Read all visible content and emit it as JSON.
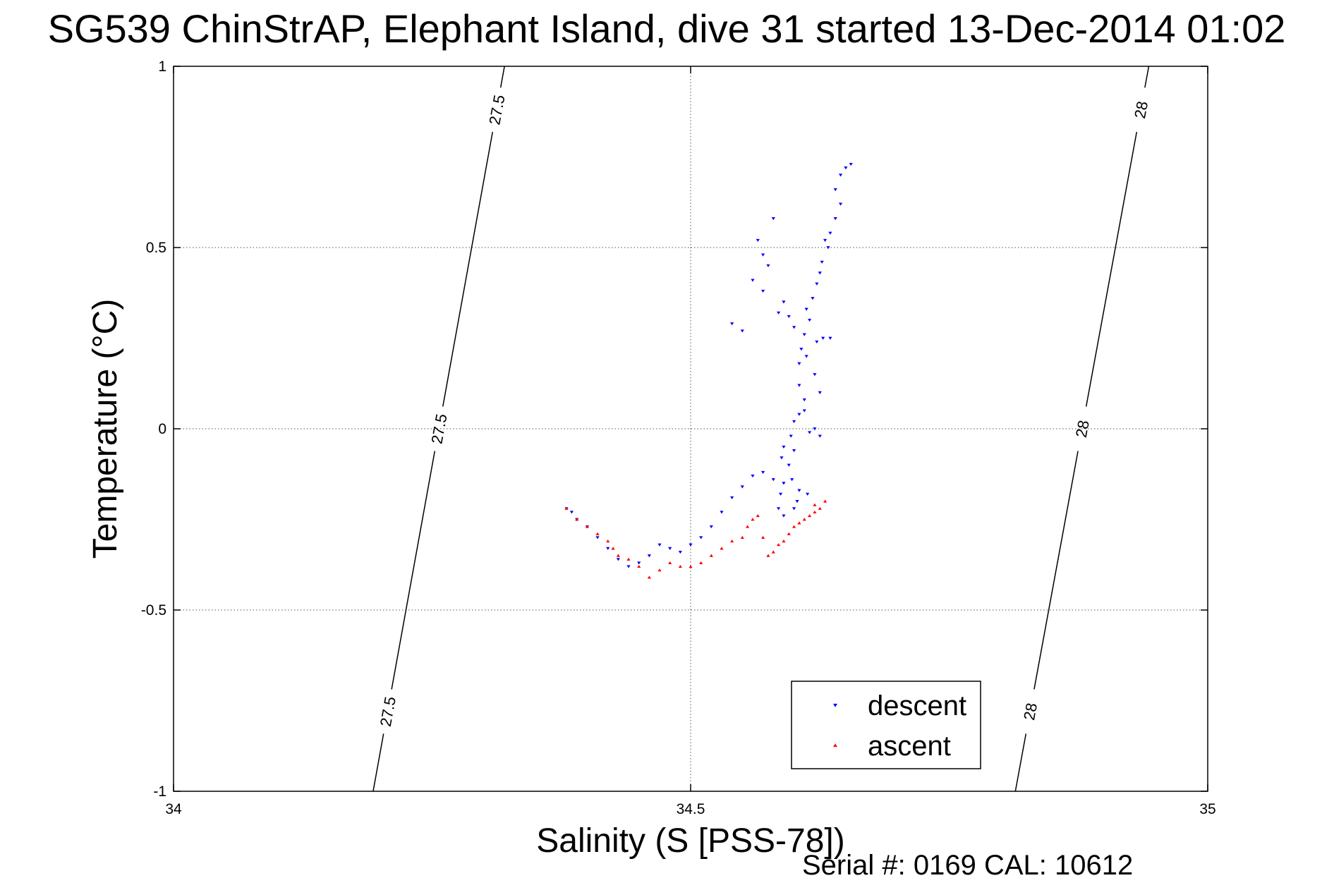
{
  "chart_data": {
    "type": "scatter",
    "title": "SG539 ChinStrAP, Elephant Island, dive 31 started 13-Dec-2014 01:02",
    "xlabel": "Salinity (S [PSS-78])",
    "ylabel": "Temperature (°C)",
    "xlim": [
      34,
      35
    ],
    "ylim": [
      -1,
      1
    ],
    "x_ticks": [
      "34",
      "34.5",
      "35"
    ],
    "y_ticks": [
      "1",
      "0.5",
      "0",
      "-0.5",
      "-1"
    ],
    "x_tick_values": [
      34,
      34.5,
      35
    ],
    "y_tick_values": [
      1,
      0.5,
      0,
      -0.5,
      -1
    ],
    "grid": true,
    "legend_position": "bottom-right",
    "footer": "Serial #: 0169 CAL: 10612",
    "series": [
      {
        "name": "descent",
        "color": "#0000ff",
        "marker": "triangle-down",
        "x": [
          34.655,
          34.65,
          34.645,
          34.64,
          34.645,
          34.64,
          34.635,
          34.63,
          34.633,
          34.627,
          34.625,
          34.622,
          34.618,
          34.612,
          34.615,
          34.61,
          34.607,
          34.605,
          34.612,
          34.622,
          34.628,
          34.635,
          34.62,
          34.625,
          34.61,
          34.605,
          34.6,
          34.597,
          34.59,
          34.588,
          34.595,
          34.598,
          34.605,
          34.613,
          34.603,
          34.6,
          34.59,
          34.585,
          34.587,
          34.59,
          34.58,
          34.57,
          34.56,
          34.55,
          34.54,
          34.53,
          34.52,
          34.51,
          34.5,
          34.49,
          34.48,
          34.47,
          34.46,
          34.45,
          34.44,
          34.43,
          34.42,
          34.41,
          34.4,
          34.39,
          34.385,
          34.38,
          34.59,
          34.595,
          34.6,
          34.605,
          34.61,
          34.615,
          34.62,
          34.625,
          34.6,
          34.585,
          34.57,
          34.575,
          34.565,
          34.58,
          34.56,
          34.57,
          34.55,
          34.54
        ],
        "y": [
          0.73,
          0.72,
          0.7,
          0.66,
          0.62,
          0.58,
          0.54,
          0.52,
          0.5,
          0.46,
          0.43,
          0.4,
          0.36,
          0.33,
          0.3,
          0.26,
          0.22,
          0.18,
          0.2,
          0.24,
          0.25,
          0.25,
          0.15,
          0.1,
          0.08,
          0.04,
          0.02,
          -0.02,
          -0.05,
          -0.08,
          -0.1,
          -0.14,
          -0.17,
          -0.18,
          -0.2,
          -0.22,
          -0.24,
          -0.22,
          -0.18,
          -0.15,
          -0.14,
          -0.12,
          -0.13,
          -0.16,
          -0.19,
          -0.23,
          -0.27,
          -0.3,
          -0.32,
          -0.34,
          -0.33,
          -0.32,
          -0.35,
          -0.37,
          -0.38,
          -0.36,
          -0.33,
          -0.3,
          -0.27,
          -0.25,
          -0.23,
          -0.22,
          0.35,
          0.31,
          0.28,
          0.12,
          0.05,
          -0.01,
          0.0,
          -0.02,
          -0.06,
          0.32,
          0.38,
          0.45,
          0.52,
          0.58,
          0.41,
          0.48,
          0.27,
          0.29
        ]
      },
      {
        "name": "ascent",
        "color": "#ff0000",
        "marker": "triangle-up",
        "x": [
          34.38,
          34.39,
          34.4,
          34.41,
          34.42,
          34.425,
          34.43,
          34.44,
          34.45,
          34.46,
          34.47,
          34.48,
          34.49,
          34.5,
          34.51,
          34.52,
          34.53,
          34.54,
          34.55,
          34.555,
          34.56,
          34.565,
          34.57,
          34.575,
          34.58,
          34.585,
          34.59,
          34.595,
          34.6,
          34.605,
          34.61,
          34.615,
          34.62,
          34.625,
          34.62,
          34.63
        ],
        "y": [
          -0.22,
          -0.25,
          -0.27,
          -0.29,
          -0.31,
          -0.33,
          -0.35,
          -0.36,
          -0.38,
          -0.41,
          -0.39,
          -0.37,
          -0.38,
          -0.38,
          -0.37,
          -0.35,
          -0.33,
          -0.31,
          -0.3,
          -0.27,
          -0.25,
          -0.24,
          -0.3,
          -0.35,
          -0.34,
          -0.32,
          -0.31,
          -0.29,
          -0.27,
          -0.26,
          -0.25,
          -0.24,
          -0.23,
          -0.22,
          -0.21,
          -0.2
        ]
      }
    ],
    "contours": [
      {
        "label": "27.5",
        "x0": 34.193,
        "y0": -1,
        "x1": 34.32,
        "y1": 1
      },
      {
        "label": "28",
        "x0": 34.814,
        "y0": -1,
        "x1": 34.943,
        "y1": 1
      }
    ]
  }
}
